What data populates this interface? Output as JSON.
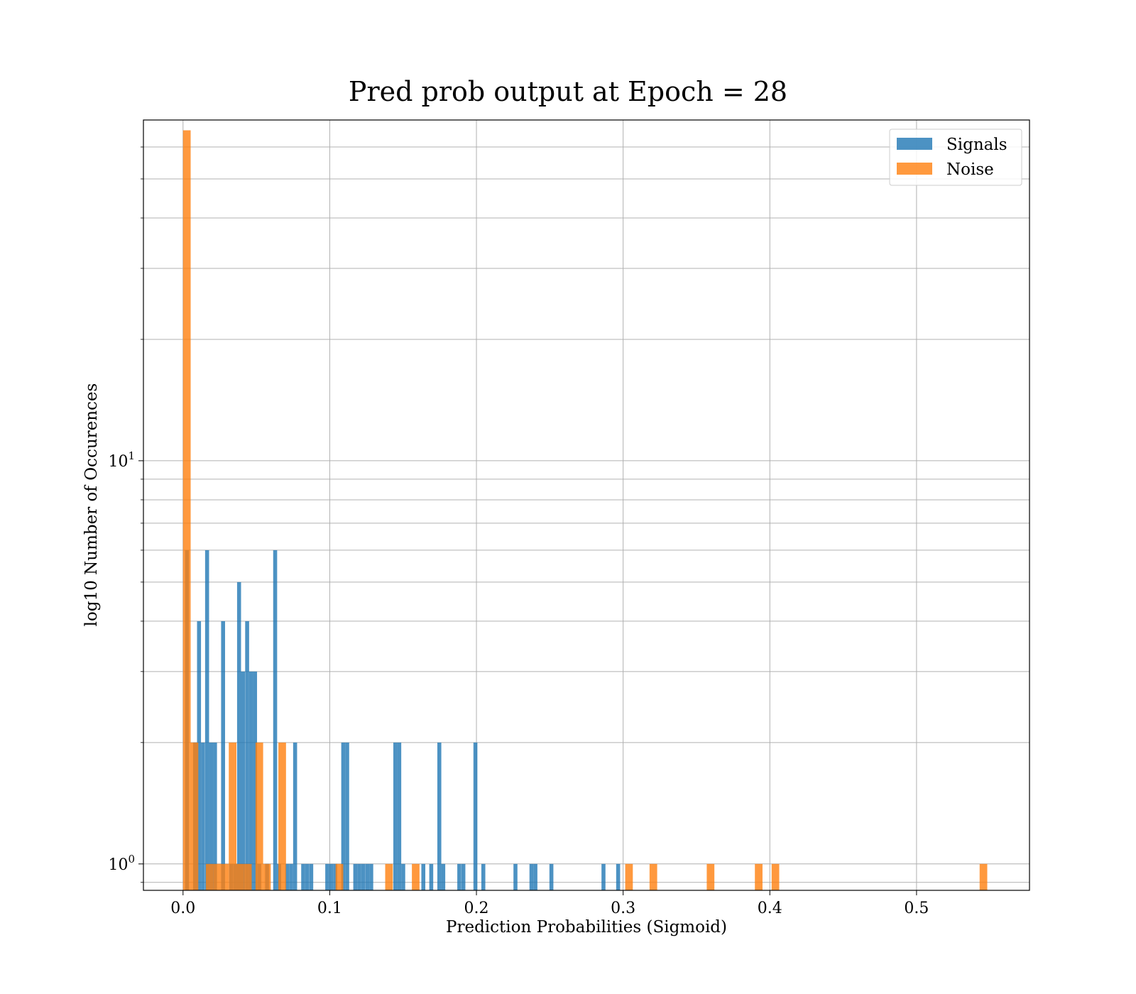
{
  "chart_data": {
    "type": "bar",
    "title": "Pred prob output at Epoch = 28",
    "xlabel": "Prediction Probabilities (Sigmoid)",
    "ylabel": "log10 Number of Occurences",
    "xlim": [
      -0.027,
      0.577
    ],
    "ylim": [
      0.86,
      70
    ],
    "yscale": "log",
    "grid": true,
    "legend_position": "top-right",
    "x_ticks": [
      {
        "value": 0.0,
        "label": "0.0"
      },
      {
        "value": 0.1,
        "label": "0.1"
      },
      {
        "value": 0.2,
        "label": "0.2"
      },
      {
        "value": 0.3,
        "label": "0.3"
      },
      {
        "value": 0.4,
        "label": "0.4"
      },
      {
        "value": 0.5,
        "label": "0.5"
      }
    ],
    "y_major_ticks": [
      {
        "value": 1,
        "base": "10",
        "exp": "0"
      },
      {
        "value": 10,
        "base": "10",
        "exp": "1"
      }
    ],
    "y_minor_ticks": [
      0.9,
      2,
      3,
      4,
      5,
      6,
      7,
      8,
      9,
      20,
      30,
      40,
      50,
      60
    ],
    "series": [
      {
        "name": "Signals",
        "color": "#1f77b4",
        "opacity": 0.8,
        "bar_width": 0.0027,
        "bins": [
          [
            0.0027,
            6
          ],
          [
            0.0082,
            2
          ],
          [
            0.0109,
            4
          ],
          [
            0.0136,
            2
          ],
          [
            0.0164,
            6
          ],
          [
            0.0191,
            2
          ],
          [
            0.0218,
            2
          ],
          [
            0.0273,
            4
          ],
          [
            0.0327,
            1
          ],
          [
            0.0355,
            1
          ],
          [
            0.0382,
            5
          ],
          [
            0.0409,
            3
          ],
          [
            0.0437,
            4
          ],
          [
            0.0464,
            3
          ],
          [
            0.0491,
            3
          ],
          [
            0.0519,
            1
          ],
          [
            0.0573,
            1
          ],
          [
            0.0628,
            6
          ],
          [
            0.0655,
            1
          ],
          [
            0.071,
            1
          ],
          [
            0.0737,
            1
          ],
          [
            0.0764,
            2
          ],
          [
            0.0819,
            1
          ],
          [
            0.0846,
            1
          ],
          [
            0.0874,
            1
          ],
          [
            0.0983,
            1
          ],
          [
            0.101,
            1
          ],
          [
            0.1037,
            1
          ],
          [
            0.1092,
            2
          ],
          [
            0.1119,
            2
          ],
          [
            0.1174,
            1
          ],
          [
            0.1201,
            1
          ],
          [
            0.1228,
            1
          ],
          [
            0.1256,
            1
          ],
          [
            0.1283,
            1
          ],
          [
            0.1447,
            2
          ],
          [
            0.1474,
            2
          ],
          [
            0.1501,
            1
          ],
          [
            0.1638,
            1
          ],
          [
            0.1692,
            1
          ],
          [
            0.1747,
            2
          ],
          [
            0.1774,
            1
          ],
          [
            0.1883,
            1
          ],
          [
            0.1911,
            1
          ],
          [
            0.1993,
            2
          ],
          [
            0.2047,
            1
          ],
          [
            0.2266,
            1
          ],
          [
            0.2375,
            1
          ],
          [
            0.2402,
            1
          ],
          [
            0.2511,
            1
          ],
          [
            0.2866,
            1
          ],
          [
            0.2966,
            1
          ]
        ]
      },
      {
        "name": "Noise",
        "color": "#ff7f0e",
        "opacity": 0.8,
        "bar_width": 0.0052,
        "bins": [
          [
            0.0026,
            66
          ],
          [
            0.0078,
            2
          ],
          [
            0.0182,
            1
          ],
          [
            0.0234,
            1
          ],
          [
            0.0286,
            1
          ],
          [
            0.0338,
            2
          ],
          [
            0.039,
            1
          ],
          [
            0.0442,
            1
          ],
          [
            0.052,
            2
          ],
          [
            0.0572,
            1
          ],
          [
            0.0676,
            2
          ],
          [
            0.1066,
            1
          ],
          [
            0.1404,
            1
          ],
          [
            0.1586,
            1
          ],
          [
            0.304,
            1
          ],
          [
            0.3206,
            1
          ],
          [
            0.3596,
            1
          ],
          [
            0.3924,
            1
          ],
          [
            0.4038,
            1
          ],
          [
            0.5456,
            1
          ]
        ]
      }
    ]
  }
}
